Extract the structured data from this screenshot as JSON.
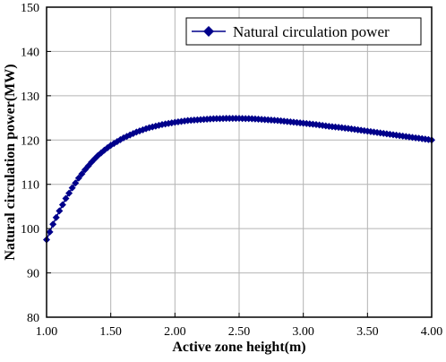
{
  "chart_data": {
    "type": "line",
    "xlabel": "Active zone height(m)",
    "ylabel": "Natural circulation power(MW)",
    "xlim": [
      1.0,
      4.0
    ],
    "ylim": [
      80,
      150
    ],
    "xticks": [
      "1.00",
      "1.50",
      "2.00",
      "2.50",
      "3.00",
      "3.50",
      "4.00"
    ],
    "yticks": [
      "80",
      "90",
      "100",
      "110",
      "120",
      "130",
      "140",
      "150"
    ],
    "grid": true,
    "legend_position": "top-right",
    "series": [
      {
        "name": "Natural circulation power",
        "color": "#00008B",
        "marker": "diamond",
        "x": [
          1.0,
          1.05,
          1.1,
          1.15,
          1.2,
          1.25,
          1.3,
          1.35,
          1.4,
          1.45,
          1.5,
          1.6,
          1.7,
          1.8,
          1.9,
          2.0,
          2.1,
          2.2,
          2.3,
          2.4,
          2.5,
          2.6,
          2.7,
          2.8,
          2.9,
          3.0,
          3.1,
          3.2,
          3.3,
          3.4,
          3.5,
          3.6,
          3.7,
          3.8,
          3.9,
          4.0
        ],
        "y": [
          97.5,
          101.0,
          104.0,
          106.8,
          109.2,
          111.4,
          113.3,
          115.0,
          116.5,
          117.7,
          118.8,
          120.5,
          121.8,
          122.8,
          123.5,
          124.0,
          124.4,
          124.6,
          124.8,
          124.9,
          124.9,
          124.8,
          124.6,
          124.4,
          124.1,
          123.8,
          123.5,
          123.1,
          122.8,
          122.4,
          122.0,
          121.6,
          121.2,
          120.8,
          120.4,
          120.0
        ]
      }
    ]
  }
}
